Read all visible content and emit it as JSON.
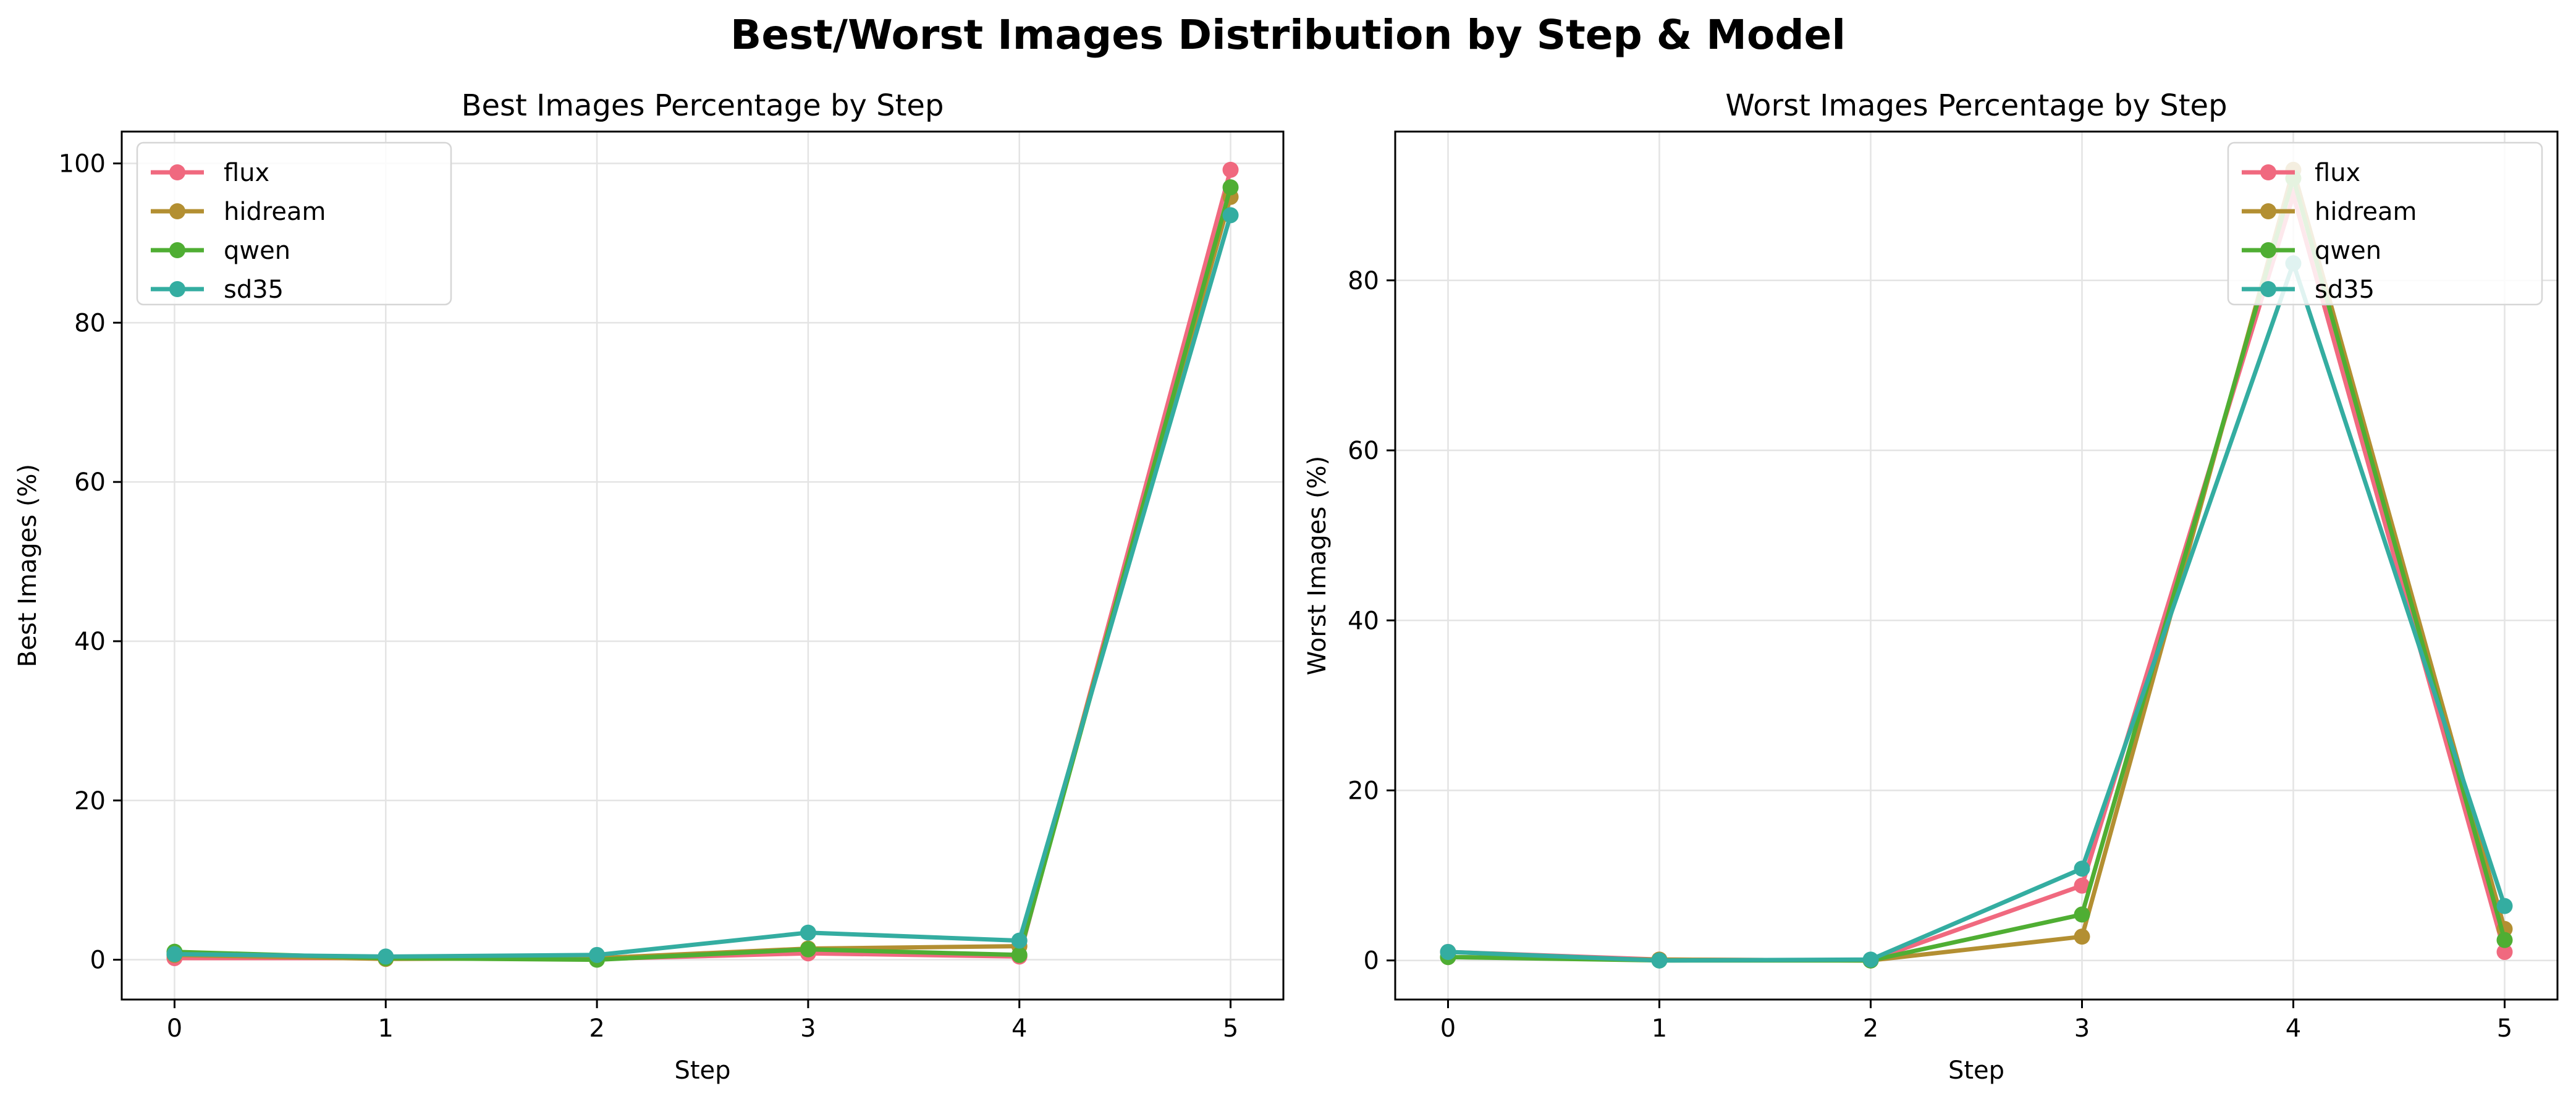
{
  "figure": {
    "suptitle": "Best/Worst Images Distribution by Step & Model"
  },
  "series_colors": {
    "flux": "#f0697f",
    "hidream": "#b38f32",
    "qwen": "#4fae33",
    "sd35": "#34ada1"
  },
  "chart_data": [
    {
      "type": "line",
      "title": "Best Images Percentage by Step",
      "xlabel": "Step",
      "ylabel": "Best Images (%)",
      "x": [
        0,
        1,
        2,
        3,
        4,
        5
      ],
      "xlim": [
        -0.25,
        5.25
      ],
      "ylim": [
        -5,
        104
      ],
      "xticks": [
        0,
        1,
        2,
        3,
        4,
        5
      ],
      "yticks": [
        0,
        20,
        40,
        60,
        80,
        100
      ],
      "grid": true,
      "legend": "upper-left",
      "marker": "circle",
      "series": [
        {
          "name": "flux",
          "values": [
            0.2,
            0.2,
            0.1,
            0.8,
            0.4,
            99.2
          ]
        },
        {
          "name": "hidream",
          "values": [
            0.6,
            0.1,
            0.2,
            1.4,
            1.7,
            95.8
          ]
        },
        {
          "name": "qwen",
          "values": [
            1.0,
            0.2,
            0.0,
            1.3,
            0.6,
            97.0
          ]
        },
        {
          "name": "sd35",
          "values": [
            0.7,
            0.4,
            0.6,
            3.4,
            2.4,
            93.5
          ]
        }
      ]
    },
    {
      "type": "line",
      "title": "Worst Images Percentage by Step",
      "xlabel": "Step",
      "ylabel": "Worst Images (%)",
      "x": [
        0,
        1,
        2,
        3,
        4,
        5
      ],
      "xlim": [
        -0.25,
        5.25
      ],
      "ylim": [
        -4.6,
        97.5
      ],
      "xticks": [
        0,
        1,
        2,
        3,
        4,
        5
      ],
      "yticks": [
        0,
        20,
        40,
        60,
        80
      ],
      "grid": true,
      "legend": "upper-right",
      "marker": "circle",
      "series": [
        {
          "name": "flux",
          "values": [
            1.0,
            0.1,
            0.0,
            8.8,
            90.0,
            1.0
          ]
        },
        {
          "name": "hidream",
          "values": [
            0.4,
            0.1,
            0.0,
            2.8,
            93.0,
            3.7
          ]
        },
        {
          "name": "qwen",
          "values": [
            0.4,
            0.0,
            0.0,
            5.4,
            92.0,
            2.4
          ]
        },
        {
          "name": "sd35",
          "values": [
            1.0,
            0.0,
            0.1,
            10.8,
            82.0,
            6.4
          ]
        }
      ]
    }
  ]
}
